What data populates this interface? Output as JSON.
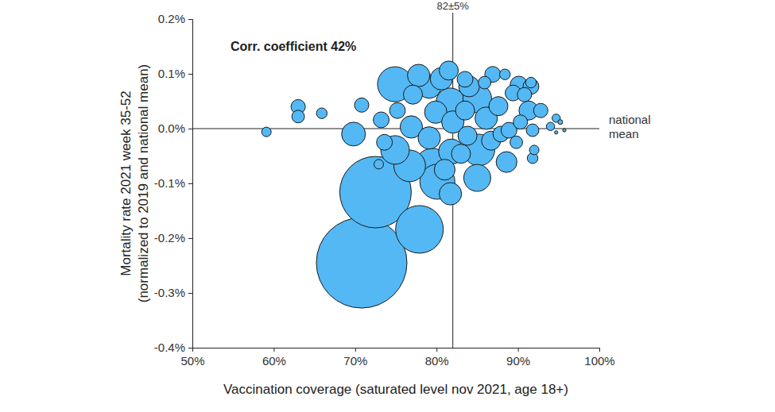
{
  "chart_data": {
    "type": "scatter",
    "marker": "bubble",
    "color": "#53b8f4",
    "xlabel": "Vaccination coverage (saturated level nov 2021, age 18+)",
    "ylabel": [
      "Mortality rate 2021 week 35-52",
      "(normalized to 2019 and national mean)"
    ],
    "annotations": [
      "Corr. coefficient 42%"
    ],
    "vline": {
      "value": 82,
      "label": "82±5%"
    },
    "hline": {
      "value": 0,
      "label": "national mean"
    },
    "xlim": [
      50,
      100
    ],
    "ylim": [
      -0.4,
      0.2
    ],
    "xticks": [
      {
        "value": 50,
        "label": "50%"
      },
      {
        "value": 60,
        "label": "60%"
      },
      {
        "value": 70,
        "label": "70%"
      },
      {
        "value": 80,
        "label": "80%"
      },
      {
        "value": 90,
        "label": "90%"
      },
      {
        "value": 100,
        "label": "100%"
      }
    ],
    "yticks": [
      {
        "value": -0.4,
        "label": "-0.4%"
      },
      {
        "value": -0.3,
        "label": "-0.3%"
      },
      {
        "value": -0.2,
        "label": "-0.2%"
      },
      {
        "value": -0.1,
        "label": "-0.1%"
      },
      {
        "value": 0,
        "label": "0.0%"
      },
      {
        "value": 0.1,
        "label": "0.1%"
      },
      {
        "value": 0.2,
        "label": "0.2%"
      }
    ],
    "x": [
      70.8,
      72.5,
      77.9,
      74.9,
      79.5,
      80.1,
      76.7,
      85.2,
      74.9,
      81.7,
      85.0,
      85.0,
      81.8,
      69.8,
      79.1,
      77.8,
      76.9,
      80.6,
      79.9,
      79.1,
      82.0,
      86.1,
      81.7,
      84.0,
      88.6,
      81.0,
      83.8,
      87.6,
      91.3,
      77.1,
      81.5,
      83.0,
      83.5,
      86.7,
      90.1,
      73.2,
      87.9,
      89.4,
      91.6,
      75.2,
      73.6,
      88.9,
      86.9,
      83.5,
      63.0,
      70.8,
      90.3,
      90.8,
      92.8,
      63.0,
      89.8,
      91.8,
      85.9,
      65.9,
      91.6,
      91.8,
      88.4,
      59.1,
      92.0,
      72.9,
      94.0,
      94.7,
      95.2,
      94.7,
      95.7
    ],
    "y": [
      -0.245,
      -0.116,
      -0.184,
      0.081,
      -0.068,
      -0.097,
      -0.068,
      -0.039,
      -0.039,
      0.048,
      0.055,
      -0.09,
      -0.042,
      -0.01,
      0.077,
      0.097,
      0.003,
      0.091,
      0.03,
      -0.017,
      0.012,
      0.019,
      -0.119,
      0.077,
      -0.061,
      -0.075,
      -0.013,
      0.041,
      0.033,
      0.062,
      0.106,
      -0.046,
      0.033,
      -0.022,
      0.08,
      0.016,
      -0.01,
      0.065,
      0.077,
      0.033,
      -0.025,
      -0.003,
      0.099,
      0.09,
      0.04,
      0.043,
      0.012,
      0.062,
      0.033,
      0.022,
      -0.025,
      -0.003,
      0.084,
      0.028,
      0.084,
      -0.054,
      0.099,
      -0.006,
      -0.039,
      -0.065,
      0.004,
      0.019,
      0.012,
      -0.007,
      -0.003
    ],
    "sizes": [
      361,
      225,
      100,
      54,
      54,
      54,
      44,
      44,
      36,
      36,
      36,
      32,
      28,
      25,
      25,
      22,
      22,
      22,
      22,
      22,
      22,
      22,
      22,
      19,
      19,
      19,
      16,
      16,
      16,
      16,
      16,
      16,
      16,
      16,
      13,
      11,
      11,
      11,
      11,
      11,
      11,
      11,
      11,
      11,
      9,
      9,
      9,
      9,
      9,
      7,
      7,
      7,
      7,
      5,
      5,
      5,
      5,
      4,
      4,
      4,
      3,
      3,
      1,
      0.5,
      0.5
    ]
  }
}
